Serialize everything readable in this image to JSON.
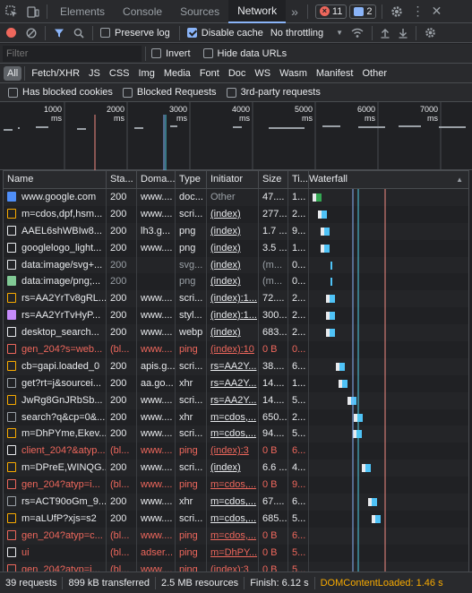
{
  "tabs": {
    "items": [
      "Elements",
      "Console",
      "Sources",
      "Network"
    ],
    "active": "Network",
    "more": "»",
    "errors_count": "11",
    "messages_count": "2"
  },
  "toolbar": {
    "preserve_log": "Preserve log",
    "disable_cache": "Disable cache",
    "throttling": "No throttling"
  },
  "filter": {
    "placeholder": "Filter",
    "invert": "Invert",
    "hide_data_urls": "Hide data URLs"
  },
  "types": [
    "All",
    "Fetch/XHR",
    "JS",
    "CSS",
    "Img",
    "Media",
    "Font",
    "Doc",
    "WS",
    "Wasm",
    "Manifest",
    "Other"
  ],
  "blocking": {
    "blocked_cookies": "Has blocked cookies",
    "blocked_requests": "Blocked Requests",
    "third_party": "3rd-party requests"
  },
  "overview": {
    "ticks": [
      "1000 ms",
      "2000 ms",
      "3000 ms",
      "4000 ms",
      "5000 ms",
      "6000 ms",
      "7000 ms"
    ]
  },
  "table": {
    "headers": {
      "name": "Name",
      "status": "Sta...",
      "domain": "Doma...",
      "type": "Type",
      "initiator": "Initiator",
      "size": "Size",
      "time": "Ti...",
      "waterfall": "Waterfall"
    },
    "rows": [
      {
        "name": "www.google.com",
        "status": "200",
        "domain": "www....",
        "type": "doc...",
        "initiator": "Other",
        "size": "47....",
        "time": "1...",
        "icon": "document-icon",
        "iconColor": "#4f8ef7",
        "error": false
      },
      {
        "name": "m=cdos,dpf,hsm...",
        "status": "200",
        "domain": "www....",
        "type": "scri...",
        "initiator": "(index)",
        "size": "277...",
        "time": "2...",
        "icon": "script-icon",
        "iconColor": "#f9ab00",
        "error": false
      },
      {
        "name": "AAEL6shWBIw8...",
        "status": "200",
        "domain": "lh3.g...",
        "type": "png",
        "initiator": "(index)",
        "size": "1.7 ...",
        "time": "9...",
        "icon": "image-icon",
        "iconColor": "#e8eaed",
        "error": false
      },
      {
        "name": "googlelogo_light...",
        "status": "200",
        "domain": "www....",
        "type": "png",
        "initiator": "(index)",
        "size": "3.5 ...",
        "time": "1...",
        "icon": "image-icon",
        "iconColor": "#e8eaed",
        "error": false
      },
      {
        "name": "data:image/svg+...",
        "status": "200",
        "domain": "",
        "type": "svg...",
        "initiator": "(index)",
        "size": "(m...",
        "time": "0...",
        "icon": "image-icon",
        "iconColor": "#e8eaed",
        "error": false,
        "dim": true
      },
      {
        "name": "data:image/png;...",
        "status": "200",
        "domain": "",
        "type": "png",
        "initiator": "(index)",
        "size": "(m...",
        "time": "0...",
        "icon": "image-icon",
        "iconColor": "#81c995",
        "error": false,
        "dim": true
      },
      {
        "name": "rs=AA2YrTv8gRL...",
        "status": "200",
        "domain": "www....",
        "type": "scri...",
        "initiator": "(index):1...",
        "size": "72....",
        "time": "2...",
        "icon": "script-icon",
        "iconColor": "#f9ab00",
        "error": false
      },
      {
        "name": "rs=AA2YrTvHyP...",
        "status": "200",
        "domain": "www....",
        "type": "styl...",
        "initiator": "(index):1...",
        "size": "300...",
        "time": "2...",
        "icon": "stylesheet-icon",
        "iconColor": "#c58af9",
        "error": false
      },
      {
        "name": "desktop_search...",
        "status": "200",
        "domain": "www....",
        "type": "webp",
        "initiator": "(index)",
        "size": "683...",
        "time": "2...",
        "icon": "image-icon",
        "iconColor": "#e8eaed",
        "error": false
      },
      {
        "name": "gen_204?s=web...",
        "status": "(bl...",
        "domain": "www....",
        "type": "ping",
        "initiator": "(index):10",
        "size": "0 B",
        "time": "0...",
        "icon": "other-icon",
        "iconColor": "#ee675c",
        "error": true
      },
      {
        "name": "cb=gapi.loaded_0",
        "status": "200",
        "domain": "apis.g...",
        "type": "scri...",
        "initiator": "rs=AA2Y...",
        "size": "38....",
        "time": "6...",
        "icon": "script-icon",
        "iconColor": "#f9ab00",
        "error": false
      },
      {
        "name": "get?rt=j&sourcei...",
        "status": "200",
        "domain": "aa.go...",
        "type": "xhr",
        "initiator": "rs=AA2Y...",
        "size": "14....",
        "time": "1...",
        "icon": "xhr-icon",
        "iconColor": "#9aa0a6",
        "error": false
      },
      {
        "name": "JwRg8GnJRbSb...",
        "status": "200",
        "domain": "www....",
        "type": "scri...",
        "initiator": "rs=AA2Y...",
        "size": "14....",
        "time": "5...",
        "icon": "script-icon",
        "iconColor": "#f9ab00",
        "error": false
      },
      {
        "name": "search?q&cp=0&...",
        "status": "200",
        "domain": "www....",
        "type": "xhr",
        "initiator": "m=cdos,...",
        "size": "650...",
        "time": "2...",
        "icon": "xhr-icon",
        "iconColor": "#9aa0a6",
        "error": false
      },
      {
        "name": "m=DhPYme,Ekev...",
        "status": "200",
        "domain": "www....",
        "type": "scri...",
        "initiator": "m=cdos,...",
        "size": "94....",
        "time": "5...",
        "icon": "script-icon",
        "iconColor": "#f9ab00",
        "error": false
      },
      {
        "name": "client_204?&atyp...",
        "status": "(bl...",
        "domain": "www....",
        "type": "ping",
        "initiator": "(index):3",
        "size": "0 B",
        "time": "6...",
        "icon": "other-icon",
        "iconColor": "#e8eaed",
        "error": true
      },
      {
        "name": "m=DPreE,WINQG...",
        "status": "200",
        "domain": "www....",
        "type": "scri...",
        "initiator": "(index)",
        "size": "6.6 ...",
        "time": "4...",
        "icon": "script-icon",
        "iconColor": "#f9ab00",
        "error": false
      },
      {
        "name": "gen_204?atyp=i...",
        "status": "(bl...",
        "domain": "www....",
        "type": "ping",
        "initiator": "m=cdos,...",
        "size": "0 B",
        "time": "9...",
        "icon": "other-icon",
        "iconColor": "#ee675c",
        "error": true
      },
      {
        "name": "rs=ACT90oGm_9...",
        "status": "200",
        "domain": "www....",
        "type": "xhr",
        "initiator": "m=cdos,...",
        "size": "67....",
        "time": "6...",
        "icon": "xhr-icon",
        "iconColor": "#9aa0a6",
        "error": false
      },
      {
        "name": "m=aLUfP?xjs=s2",
        "status": "200",
        "domain": "www....",
        "type": "scri...",
        "initiator": "m=cdos,...",
        "size": "685...",
        "time": "5...",
        "icon": "script-icon",
        "iconColor": "#f9ab00",
        "error": false
      },
      {
        "name": "gen_204?atyp=c...",
        "status": "(bl...",
        "domain": "www....",
        "type": "ping",
        "initiator": "m=cdos,...",
        "size": "0 B",
        "time": "6...",
        "icon": "other-icon",
        "iconColor": "#ee675c",
        "error": true
      },
      {
        "name": "ui",
        "status": "(bl...",
        "domain": "adser...",
        "type": "ping",
        "initiator": "m=DhPY...",
        "size": "0 B",
        "time": "5...",
        "icon": "other-icon",
        "iconColor": "#e8eaed",
        "error": true
      },
      {
        "name": "gen_204?atyp=i...",
        "status": "(bl...",
        "domain": "www....",
        "type": "ping",
        "initiator": "(index):3",
        "size": "0 B",
        "time": "5...",
        "icon": "other-icon",
        "iconColor": "#ee675c",
        "error": true
      }
    ]
  },
  "status": {
    "requests": "39 requests",
    "transferred": "899 kB transferred",
    "resources": "2.5 MB resources",
    "finish": "Finish: 6.12 s",
    "dcl": "DOMContentLoaded: 1.46 s"
  },
  "colors": {
    "accent": "#8ab4f8",
    "error": "#ee675c",
    "dcl": "#f28b82",
    "load": "#8ab4f8"
  }
}
